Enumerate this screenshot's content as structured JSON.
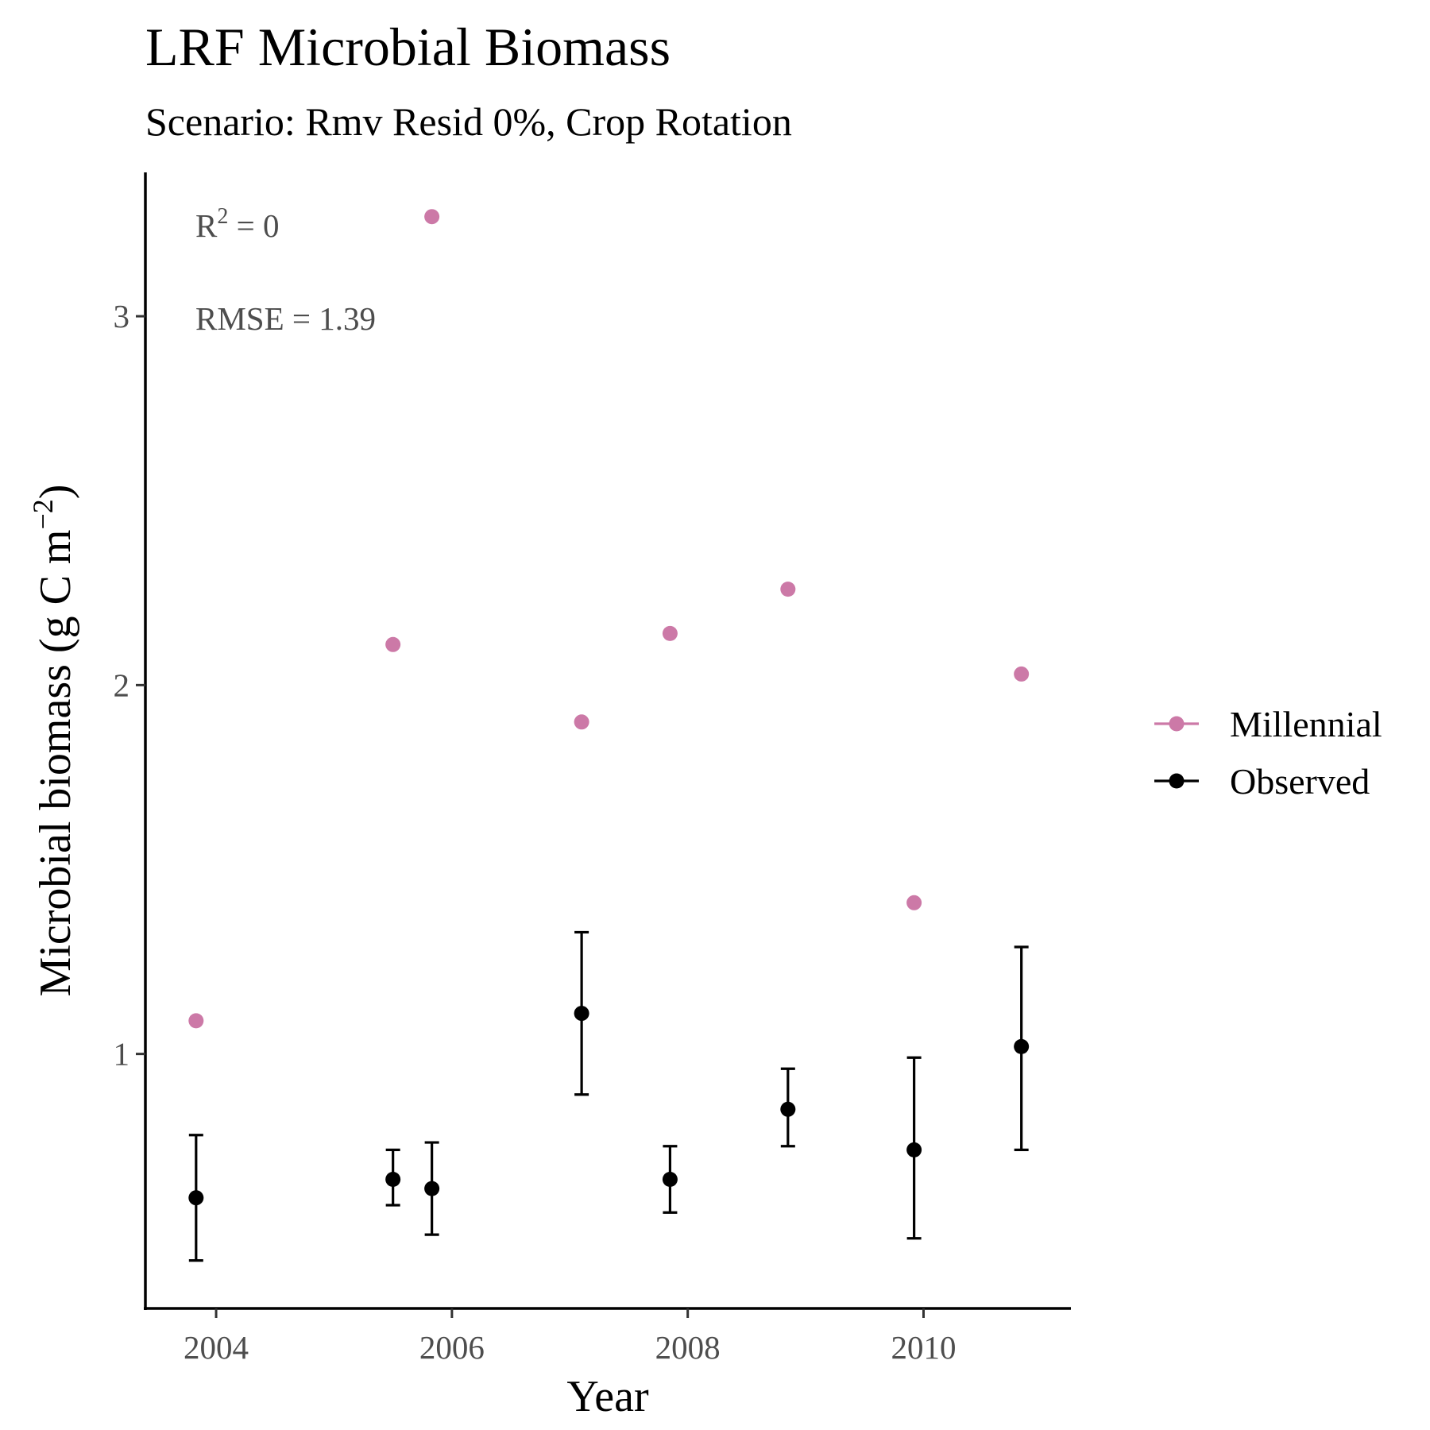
{
  "chart_data": {
    "type": "scatter",
    "title": "LRF Microbial Biomass",
    "subtitle": "Scenario: Rmv Resid 0%, Crop Rotation",
    "xlabel": "Year",
    "ylabel": "Microbial biomass (g C m",
    "ylabel_sup": "−2",
    "ylabel_close": ")",
    "xlim": [
      2003.4,
      2011.25
    ],
    "ylim": [
      0.31,
      3.39
    ],
    "x_ticks": [
      2004,
      2006,
      2008,
      2010
    ],
    "x_tick_labels": [
      "2004",
      "2006",
      "2008",
      "2010"
    ],
    "y_ticks": [
      1,
      2,
      3
    ],
    "y_tick_labels": [
      "1",
      "2",
      "3"
    ],
    "grid": false,
    "legend_position": "right",
    "annotations": {
      "r2_prefix": "R",
      "r2_sup": "2",
      "r2_value": " = 0",
      "rmse": "RMSE = 1.39"
    },
    "series": [
      {
        "name": "Millennial",
        "color": "#cc79a7",
        "x": [
          2003.83,
          2005.5,
          2005.83,
          2007.1,
          2007.85,
          2008.85,
          2009.92,
          2010.83
        ],
        "y": [
          1.09,
          2.11,
          3.27,
          1.9,
          2.14,
          2.26,
          1.41,
          2.03
        ]
      },
      {
        "name": "Observed",
        "color": "#000000",
        "x": [
          2003.83,
          2005.5,
          2005.83,
          2007.1,
          2007.85,
          2008.85,
          2009.92,
          2010.83
        ],
        "y": [
          0.61,
          0.66,
          0.635,
          1.11,
          0.66,
          0.85,
          0.74,
          1.02
        ],
        "ymin": [
          0.44,
          0.59,
          0.51,
          0.89,
          0.57,
          0.75,
          0.5,
          0.74
        ],
        "ymax": [
          0.78,
          0.74,
          0.76,
          1.33,
          0.75,
          0.96,
          0.99,
          1.29
        ]
      }
    ]
  }
}
